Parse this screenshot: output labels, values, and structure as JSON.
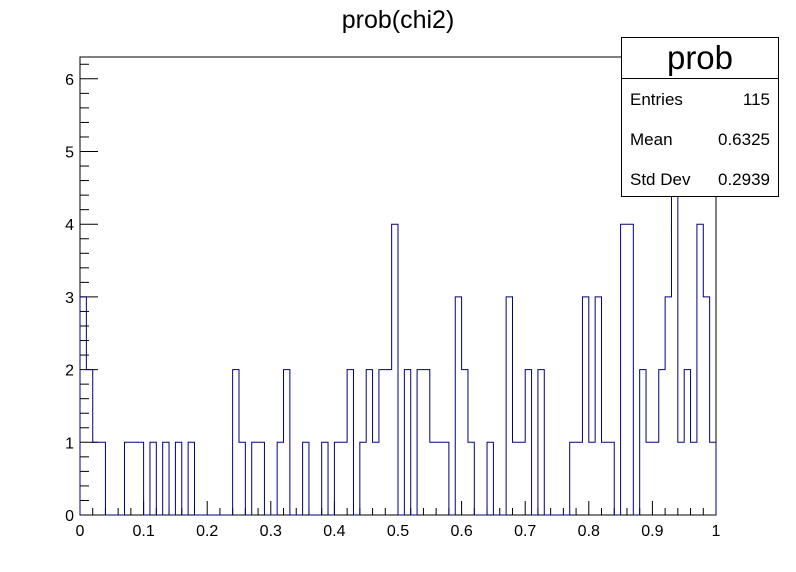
{
  "chart_data": {
    "type": "histogram",
    "title": "prob(chi2)",
    "xlabel": "",
    "ylabel": "",
    "xlim": [
      0,
      1
    ],
    "ylim": [
      0,
      6.3
    ],
    "bins": 100,
    "x_ticks": [
      "0",
      "0.1",
      "0.2",
      "0.3",
      "0.4",
      "0.5",
      "0.6",
      "0.7",
      "0.8",
      "0.9",
      "1"
    ],
    "y_ticks": [
      "0",
      "1",
      "2",
      "3",
      "4",
      "5",
      "6"
    ],
    "values": [
      3,
      2,
      1,
      1,
      0,
      0,
      0,
      1,
      1,
      1,
      0,
      1,
      0,
      1,
      0,
      1,
      0,
      1,
      0,
      0,
      0,
      0,
      0,
      0,
      2,
      1,
      0,
      1,
      1,
      0,
      0,
      1,
      2,
      0,
      0,
      1,
      0,
      0,
      1,
      0,
      1,
      1,
      2,
      0,
      1,
      2,
      1,
      2,
      2,
      4,
      0,
      2,
      0,
      2,
      2,
      1,
      1,
      1,
      0,
      3,
      2,
      1,
      0,
      0,
      1,
      0,
      0,
      3,
      1,
      1,
      2,
      0,
      2,
      0,
      0,
      0,
      0,
      1,
      1,
      3,
      1,
      3,
      1,
      1,
      0,
      4,
      4,
      0,
      2,
      1,
      1,
      2,
      3,
      6,
      1,
      2,
      1,
      4,
      3,
      1
    ],
    "line_color": "#000080",
    "stats": {
      "title": "prob",
      "entries_label": "Entries",
      "entries_value": "115",
      "mean_label": "Mean",
      "mean_value": "0.6325",
      "stddev_label": "Std Dev",
      "stddev_value": "0.2939"
    }
  }
}
